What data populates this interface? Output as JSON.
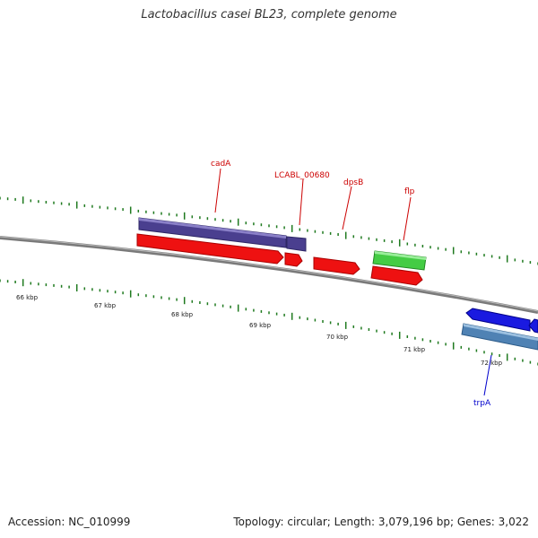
{
  "title": "Lactobacillus casei BL23, complete genome",
  "footer": {
    "accession": "Accession: NC_010999",
    "summary": "Topology: circular; Length: 3,079,196 bp; Genes: 3,022"
  },
  "colors": {
    "backbone": "#8a8a8a",
    "tick": "#1f7a1f",
    "cds_red": "#ee1111",
    "gene_purple": "#4a3f8f",
    "gene_green": "#44cc44",
    "gene_blue": "#1a1ae0",
    "gene_steel": "#4f82b4",
    "label_red": "#cc0000",
    "label_blue": "#0000cc"
  },
  "scale_labels": [
    "66 kbp",
    "67 kbp",
    "68 kbp",
    "69 kbp",
    "70 kbp",
    "71 kbp",
    "72 kbp"
  ],
  "gene_labels": [
    {
      "name": "cadA",
      "strand": "forward"
    },
    {
      "name": "LCABL_00680",
      "strand": "forward"
    },
    {
      "name": "dpsB",
      "strand": "forward"
    },
    {
      "name": "flp",
      "strand": "forward"
    },
    {
      "name": "trpA",
      "strand": "reverse"
    }
  ]
}
